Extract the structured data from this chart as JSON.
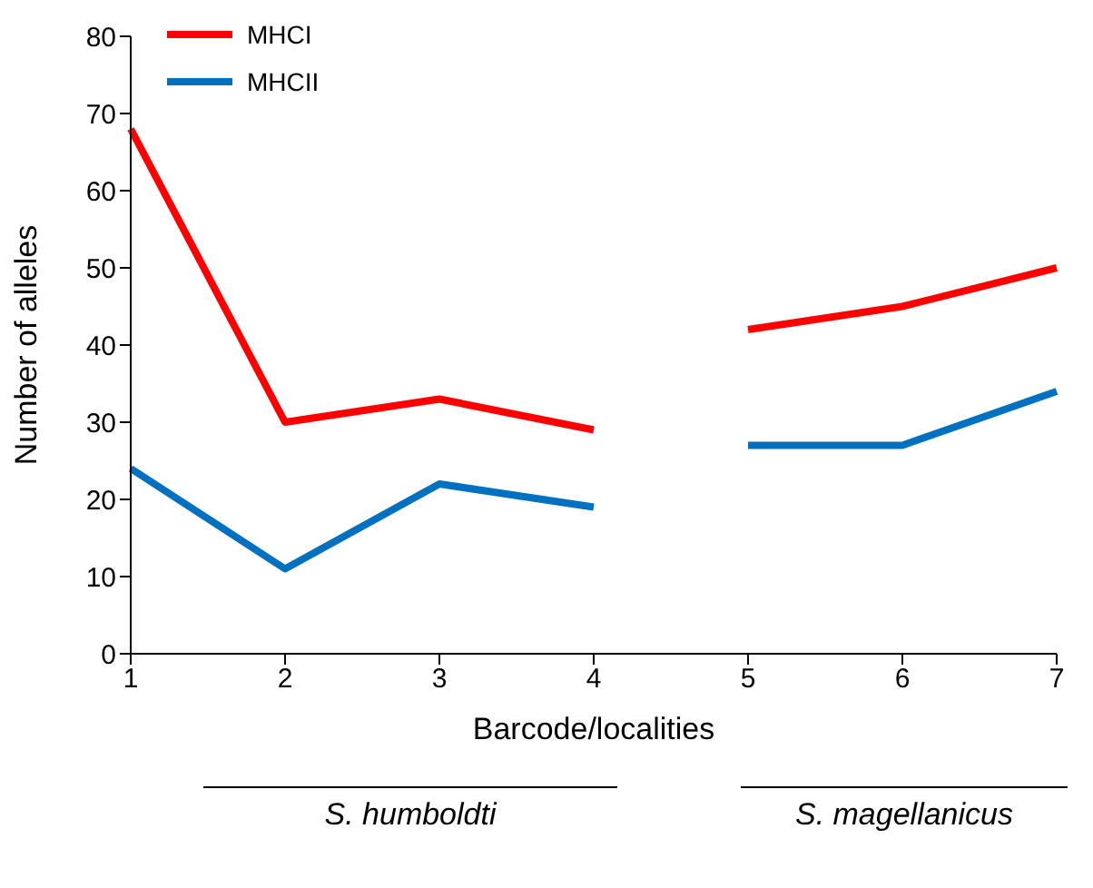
{
  "chart_data": {
    "type": "line",
    "xlabel": "Barcode/localities",
    "ylabel": "Number of alleles",
    "categories": [
      "1",
      "2",
      "3",
      "4",
      "5",
      "6",
      "7"
    ],
    "series": [
      {
        "name": "MHCI",
        "color": "#ff0000",
        "values": [
          68,
          30,
          33,
          29,
          null,
          null,
          null
        ]
      },
      {
        "color": "#ff0000",
        "values": [
          null,
          null,
          null,
          null,
          42,
          45,
          50
        ]
      },
      {
        "name": "MHCII",
        "color": "#0070c0",
        "values": [
          24,
          11,
          22,
          19,
          null,
          null,
          null
        ]
      },
      {
        "color": "#0070c0",
        "values": [
          null,
          null,
          null,
          null,
          27,
          27,
          34
        ]
      }
    ],
    "ylim": [
      0,
      80
    ],
    "yticks": [
      0,
      10,
      20,
      30,
      40,
      50,
      60,
      70,
      80
    ],
    "grid": false,
    "legend": "top left",
    "marker": "none",
    "line_style": "solid",
    "annotations": [
      "S. humboldti",
      "S. magellanicus"
    ]
  }
}
